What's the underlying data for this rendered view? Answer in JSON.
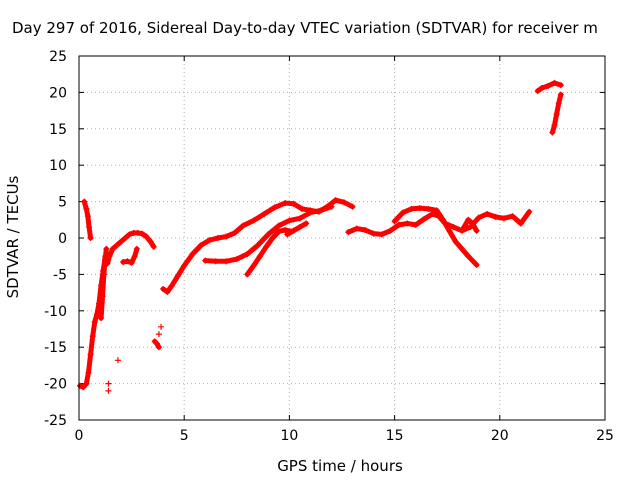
{
  "chart_data": {
    "type": "scatter",
    "title": "Day 297 of 2016, Sidereal Day-to-day VTEC variation (SDTVAR) for receiver m",
    "xlabel": "GPS time / hours",
    "ylabel": "SDTVAR / TECUs",
    "xlim": [
      0,
      25
    ],
    "ylim": [
      -25,
      25
    ],
    "xticks": [
      "0",
      "5",
      "10",
      "15",
      "20",
      "25"
    ],
    "yticks": [
      "-25",
      "-20",
      "-15",
      "-10",
      "-5",
      "0",
      "5",
      "10",
      "15",
      "20",
      "25"
    ],
    "grid": true,
    "marker": "+",
    "series": [
      {
        "name": "SDTVAR",
        "color": "#ff0000",
        "segments": [
          [
            [
              0.05,
              -20.3
            ],
            [
              0.2,
              -20.5
            ],
            [
              0.35,
              -20.0
            ],
            [
              0.45,
              -18.5
            ],
            [
              0.55,
              -16.0
            ],
            [
              0.65,
              -13.5
            ],
            [
              0.75,
              -11.5
            ],
            [
              0.85,
              -10.5
            ],
            [
              0.95,
              -9.0
            ],
            [
              1.05,
              -6.5
            ],
            [
              1.15,
              -4.5
            ],
            [
              1.25,
              -2.5
            ],
            [
              1.35,
              -3.5
            ],
            [
              1.45,
              -2.5
            ],
            [
              1.6,
              -1.5
            ],
            [
              1.8,
              -1.0
            ],
            [
              2.0,
              -0.5
            ],
            [
              2.2,
              0.0
            ],
            [
              2.4,
              0.5
            ],
            [
              2.6,
              0.7
            ],
            [
              2.8,
              0.7
            ],
            [
              3.0,
              0.6
            ],
            [
              3.2,
              0.2
            ],
            [
              3.4,
              -0.5
            ],
            [
              3.55,
              -1.2
            ]
          ],
          [
            [
              0.25,
              5.0
            ],
            [
              0.35,
              4.0
            ],
            [
              0.42,
              3.0
            ],
            [
              0.48,
              1.5
            ],
            [
              0.55,
              0.0
            ]
          ],
          [
            [
              1.05,
              -11.0
            ],
            [
              1.12,
              -8.0
            ],
            [
              1.18,
              -5.0
            ],
            [
              1.24,
              -3.0
            ],
            [
              1.3,
              -1.5
            ]
          ],
          [
            [
              2.1,
              -3.3
            ],
            [
              2.3,
              -3.2
            ],
            [
              2.5,
              -3.4
            ],
            [
              2.65,
              -2.5
            ],
            [
              2.75,
              -1.5
            ]
          ],
          [
            [
              3.6,
              -14.2
            ],
            [
              3.7,
              -14.5
            ],
            [
              3.8,
              -15.0
            ]
          ],
          [
            [
              4.0,
              -7.0
            ],
            [
              4.2,
              -7.4
            ],
            [
              4.4,
              -6.6
            ],
            [
              4.7,
              -5.2
            ],
            [
              5.0,
              -3.8
            ],
            [
              5.4,
              -2.2
            ],
            [
              5.8,
              -1.0
            ],
            [
              6.2,
              -0.3
            ],
            [
              6.6,
              0.0
            ],
            [
              7.0,
              0.2
            ],
            [
              7.4,
              0.7
            ],
            [
              7.8,
              1.7
            ],
            [
              8.3,
              2.4
            ],
            [
              8.8,
              3.3
            ],
            [
              9.3,
              4.2
            ],
            [
              9.8,
              4.8
            ],
            [
              10.2,
              4.7
            ],
            [
              10.6,
              4.0
            ],
            [
              11.0,
              3.8
            ],
            [
              11.4,
              3.6
            ],
            [
              11.8,
              4.3
            ],
            [
              12.2,
              5.2
            ],
            [
              12.6,
              4.9
            ],
            [
              13.0,
              4.3
            ]
          ],
          [
            [
              6.0,
              -3.1
            ],
            [
              6.5,
              -3.2
            ],
            [
              7.0,
              -3.2
            ],
            [
              7.5,
              -2.9
            ],
            [
              8.0,
              -2.2
            ],
            [
              8.5,
              -1.0
            ],
            [
              9.0,
              0.5
            ],
            [
              9.5,
              1.7
            ],
            [
              10.0,
              2.4
            ],
            [
              10.5,
              2.7
            ],
            [
              11.0,
              3.5
            ],
            [
              11.5,
              3.8
            ],
            [
              12.0,
              4.3
            ]
          ],
          [
            [
              8.0,
              -5.0
            ],
            [
              8.3,
              -3.8
            ],
            [
              8.6,
              -2.5
            ],
            [
              8.9,
              -1.2
            ],
            [
              9.2,
              0.0
            ],
            [
              9.5,
              0.9
            ],
            [
              9.8,
              1.1
            ],
            [
              10.1,
              0.9
            ]
          ],
          [
            [
              9.9,
              0.5
            ],
            [
              10.2,
              1.0
            ],
            [
              10.5,
              1.5
            ],
            [
              10.8,
              2.0
            ]
          ],
          [
            [
              12.8,
              0.8
            ],
            [
              13.2,
              1.3
            ],
            [
              13.6,
              1.1
            ],
            [
              14.0,
              0.6
            ],
            [
              14.4,
              0.5
            ],
            [
              14.8,
              1.0
            ],
            [
              15.2,
              1.8
            ],
            [
              15.6,
              2.0
            ],
            [
              16.0,
              1.8
            ],
            [
              16.4,
              2.6
            ],
            [
              16.8,
              3.3
            ],
            [
              17.1,
              3.0
            ],
            [
              17.4,
              2.0
            ],
            [
              17.8,
              1.5
            ],
            [
              18.2,
              1.0
            ],
            [
              18.6,
              1.5
            ],
            [
              19.0,
              2.8
            ],
            [
              19.4,
              3.3
            ],
            [
              19.8,
              2.9
            ],
            [
              20.2,
              2.7
            ],
            [
              20.6,
              3.0
            ],
            [
              21.0,
              2.0
            ],
            [
              21.4,
              3.6
            ]
          ],
          [
            [
              15.0,
              2.3
            ],
            [
              15.4,
              3.5
            ],
            [
              15.8,
              4.0
            ],
            [
              16.2,
              4.1
            ],
            [
              16.6,
              4.0
            ],
            [
              17.0,
              3.8
            ],
            [
              17.3,
              2.5
            ],
            [
              17.6,
              1.0
            ],
            [
              17.9,
              -0.5
            ],
            [
              18.2,
              -1.5
            ],
            [
              18.5,
              -2.5
            ],
            [
              18.9,
              -3.7
            ]
          ],
          [
            [
              18.3,
              1.5
            ],
            [
              18.5,
              2.5
            ],
            [
              18.7,
              2.0
            ],
            [
              18.9,
              1.0
            ]
          ],
          [
            [
              21.8,
              20.2
            ],
            [
              22.0,
              20.6
            ],
            [
              22.3,
              20.9
            ],
            [
              22.6,
              21.3
            ],
            [
              22.9,
              21.0
            ]
          ],
          [
            [
              22.5,
              14.5
            ],
            [
              22.6,
              15.5
            ],
            [
              22.7,
              17.0
            ],
            [
              22.8,
              18.5
            ],
            [
              22.9,
              19.7
            ]
          ]
        ],
        "isolated_points": [
          [
            1.4,
            -20.0
          ],
          [
            1.4,
            -21.0
          ],
          [
            1.85,
            -16.8
          ],
          [
            3.9,
            -12.2
          ],
          [
            3.8,
            -13.2
          ]
        ]
      }
    ]
  }
}
